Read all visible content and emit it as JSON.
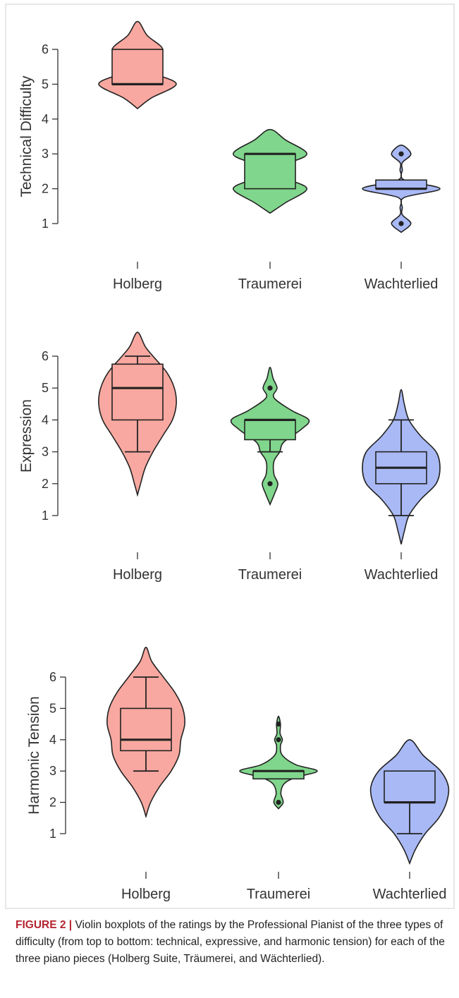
{
  "chart_data": [
    {
      "type": "violin",
      "ylabel": "Technical Difficulty",
      "categories": [
        "Holberg",
        "Traumerei",
        "Wachterlied"
      ],
      "ylim": [
        1,
        6
      ],
      "yticks": [
        1,
        2,
        3,
        4,
        5,
        6
      ],
      "groups": [
        {
          "color": "#f8a8a0",
          "whisker_low": 5,
          "q1": 5,
          "median": 5,
          "q3": 6,
          "whisker_high": 6,
          "outliers": [],
          "violin_y": [
            4.3,
            4.6,
            5,
            5.3,
            5.5,
            5.7,
            6,
            6.4,
            6.8
          ],
          "violin_width": [
            0,
            0.35,
            1,
            0.45,
            0.2,
            0.3,
            0.65,
            0.25,
            0
          ]
        },
        {
          "color": "#80d68c",
          "whisker_low": 2,
          "q1": 2,
          "median": 3,
          "q3": 3,
          "whisker_high": 3,
          "outliers": [],
          "violin_y": [
            1.3,
            1.6,
            2,
            2.3,
            2.5,
            2.7,
            3,
            3.4,
            3.7
          ],
          "violin_width": [
            0,
            0.4,
            0.95,
            0.4,
            0.2,
            0.4,
            0.95,
            0.4,
            0
          ]
        },
        {
          "color": "#a9b9f5",
          "whisker_low": 2,
          "q1": 2,
          "median": 2,
          "q3": 2.25,
          "whisker_high": 2.25,
          "outliers": [
            3,
            1
          ],
          "violin_y": [
            0.75,
            1,
            1.25,
            1.45,
            1.75,
            2,
            2.25,
            2.55,
            2.75,
            3,
            3.25
          ],
          "violin_width": [
            0,
            0.25,
            0.03,
            0.03,
            0.08,
            1,
            0.08,
            0.03,
            0.03,
            0.25,
            0
          ]
        }
      ]
    },
    {
      "type": "violin",
      "ylabel": "Expression",
      "categories": [
        "Holberg",
        "Traumerei",
        "Wachterlied"
      ],
      "ylim": [
        1,
        6
      ],
      "yticks": [
        1,
        2,
        3,
        4,
        5,
        6
      ],
      "groups": [
        {
          "color": "#f8a8a0",
          "whisker_low": 3,
          "q1": 4,
          "median": 5,
          "q3": 5.75,
          "whisker_high": 6,
          "outliers": [],
          "violin_y": [
            1.65,
            2,
            2.5,
            3,
            3.5,
            4,
            4.5,
            5,
            5.5,
            6,
            6.3,
            6.75
          ],
          "violin_width": [
            0,
            0.08,
            0.2,
            0.4,
            0.65,
            0.9,
            1,
            0.95,
            0.75,
            0.4,
            0.2,
            0
          ]
        },
        {
          "color": "#80d68c",
          "whisker_low": 3,
          "q1": 3.38,
          "median": 4,
          "q3": 4,
          "whisker_high": 4,
          "outliers": [
            5,
            2
          ],
          "violin_y": [
            1.35,
            1.7,
            2,
            2.3,
            2.7,
            3,
            3.3,
            3.7,
            4,
            4.3,
            4.7,
            5,
            5.3,
            5.65
          ],
          "violin_width": [
            0,
            0.12,
            0.2,
            0.1,
            0.1,
            0.25,
            0.35,
            0.8,
            1,
            0.55,
            0.1,
            0.18,
            0.08,
            0
          ]
        },
        {
          "color": "#a9b9f5",
          "whisker_low": 1,
          "q1": 2,
          "median": 2.5,
          "q3": 3,
          "whisker_high": 4,
          "outliers": [],
          "violin_y": [
            0.1,
            0.5,
            1,
            1.5,
            2,
            2.5,
            3,
            3.5,
            4,
            4.5,
            4.95
          ],
          "violin_width": [
            0,
            0.08,
            0.2,
            0.5,
            0.9,
            1,
            0.9,
            0.5,
            0.2,
            0.08,
            0
          ]
        }
      ]
    },
    {
      "type": "violin",
      "ylabel": "Harmonic Tension",
      "categories": [
        "Holberg",
        "Traumerei",
        "Wachterlied"
      ],
      "ylim": [
        1,
        6
      ],
      "yticks": [
        1,
        2,
        3,
        4,
        5,
        6
      ],
      "groups": [
        {
          "color": "#f8a8a0",
          "whisker_low": 3,
          "q1": 3.65,
          "median": 4,
          "q3": 5,
          "whisker_high": 6,
          "outliers": [],
          "violin_y": [
            1.55,
            2,
            2.5,
            3,
            3.5,
            4,
            4.5,
            5,
            5.5,
            6,
            6.5,
            6.95
          ],
          "violin_width": [
            0,
            0.12,
            0.35,
            0.65,
            0.85,
            0.9,
            1,
            0.95,
            0.75,
            0.45,
            0.15,
            0
          ]
        },
        {
          "color": "#80d68c",
          "whisker_low": 2.75,
          "q1": 2.75,
          "median": 3,
          "q3": 3,
          "whisker_high": 3,
          "outliers": [
            2,
            4,
            4.5
          ],
          "violin_y": [
            1.8,
            2,
            2.3,
            2.6,
            2.8,
            3,
            3.2,
            3.5,
            3.8,
            4,
            4.2,
            4.5,
            4.75
          ],
          "violin_width": [
            0,
            0.12,
            0.06,
            0.15,
            0.45,
            1,
            0.45,
            0.1,
            0.05,
            0.1,
            0.04,
            0.05,
            0
          ]
        },
        {
          "color": "#a9b9f5",
          "whisker_low": 1,
          "q1": 2,
          "median": 2,
          "q3": 3,
          "whisker_high": 3,
          "outliers": [],
          "violin_y": [
            0.05,
            0.5,
            1,
            1.5,
            2,
            2.5,
            3,
            3.5,
            4
          ],
          "violin_width": [
            0,
            0.15,
            0.4,
            0.75,
            0.95,
            1,
            0.8,
            0.35,
            0
          ]
        }
      ]
    }
  ],
  "caption": {
    "label": "FIGURE 2 |",
    "text": "Violin boxplots of the ratings by the Professional Pianist of the three types of difficulty (from top to bottom: technical, expressive, and harmonic tension) for each of the three piano pieces (Holberg Suite, Träumerei, and Wächterlied)."
  }
}
